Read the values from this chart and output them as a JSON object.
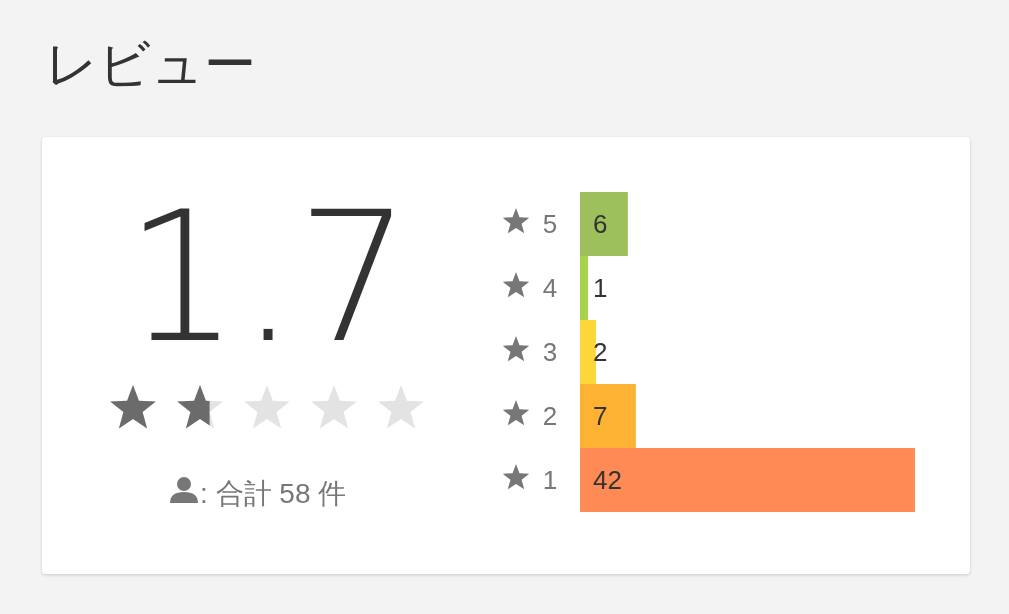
{
  "chart_data": {
    "type": "bar",
    "title": "レビュー",
    "orientation": "horizontal",
    "categories": [
      "5",
      "4",
      "3",
      "2",
      "1"
    ],
    "values": [
      6,
      1,
      2,
      7,
      42
    ],
    "colors": [
      "#9dc05c",
      "#a6d34a",
      "#fcd73a",
      "#fdb234",
      "#fe8a56"
    ],
    "data_labels": true,
    "annotations": [
      "1.7",
      ": 合計 58 件"
    ]
  }
}
